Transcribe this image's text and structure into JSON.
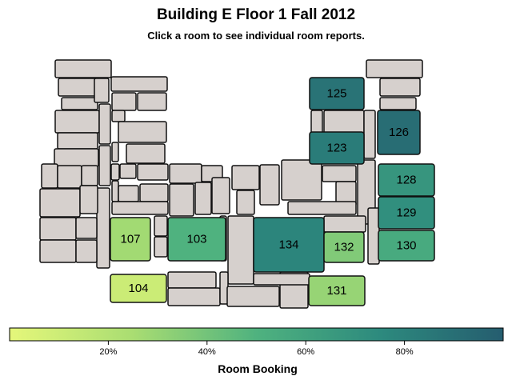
{
  "header": {
    "title": "Building E Floor 1 Fall 2012",
    "subtitle": "Click a room to see individual room reports."
  },
  "colors": {
    "room_fill": "#d6d0cd",
    "room_stroke": "#111111",
    "scale_low": "#e5f77a",
    "scale_mid": "#4fb27f",
    "scale_high": "#255d6f"
  },
  "rooms": [
    {
      "label": "125",
      "booking": 0.88
    },
    {
      "label": "126",
      "booking": 0.91
    },
    {
      "label": "123",
      "booking": 0.83
    },
    {
      "label": "128",
      "booking": 0.68
    },
    {
      "label": "129",
      "booking": 0.72
    },
    {
      "label": "107",
      "booking": 0.27
    },
    {
      "label": "103",
      "booking": 0.5
    },
    {
      "label": "134",
      "booking": 0.78
    },
    {
      "label": "132",
      "booking": 0.36
    },
    {
      "label": "130",
      "booking": 0.55
    },
    {
      "label": "104",
      "booking": 0.11
    },
    {
      "label": "131",
      "booking": 0.3
    }
  ],
  "legend": {
    "title": "Room Booking",
    "ticks": [
      "20%",
      "40%",
      "60%",
      "80%"
    ],
    "tick_values": [
      0.2,
      0.4,
      0.6,
      0.8
    ]
  }
}
